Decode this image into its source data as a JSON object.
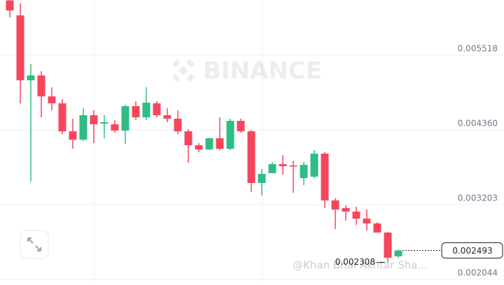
{
  "chart_data": {
    "type": "candlestick",
    "watermark": "BINANCE",
    "overlay_text": "@Khan Bhai Akhtar Sha...",
    "open": [
      0.006367,
      0.006135,
      0.005129,
      0.005204,
      0.00488,
      0.004772,
      0.004339,
      0.004209,
      0.004588,
      0.004458,
      0.004447,
      0.00435,
      0.004728,
      0.004555,
      0.004772,
      0.004588,
      0.004534,
      0.004339,
      0.004122,
      0.004058,
      0.004231,
      0.004068,
      0.004501,
      0.004339,
      0.003538,
      0.00369,
      0.00383,
      0.003809,
      0.003614,
      0.003636,
      0.003993,
      0.003268,
      0.003149,
      0.003095,
      0.002986,
      0.002911,
      0.00277,
      0.002402
    ],
    "high": [
      0.006387,
      0.006319,
      0.005378,
      0.005269,
      0.005021,
      0.004837,
      0.004534,
      0.004696,
      0.004663,
      0.004588,
      0.004512,
      0.00475,
      0.004804,
      0.005021,
      0.004804,
      0.004696,
      0.004663,
      0.004371,
      0.004155,
      0.004242,
      0.004555,
      0.004534,
      0.004534,
      0.00436,
      0.003755,
      0.003863,
      0.003971,
      0.003884,
      0.003863,
      0.004047,
      0.004014,
      0.0033,
      0.003192,
      0.00317,
      0.003127,
      0.002932,
      0.002781,
      0.00251
    ],
    "low": [
      0.006103,
      0.004772,
      0.00356,
      0.004555,
      0.004663,
      0.004296,
      0.004068,
      0.004187,
      0.004155,
      0.004231,
      0.004317,
      0.004144,
      0.004512,
      0.004512,
      0.004555,
      0.00448,
      0.004296,
      0.003852,
      0.004014,
      0.004047,
      0.004047,
      0.004047,
      0.004317,
      0.003398,
      0.003343,
      0.00369,
      0.003668,
      0.003387,
      0.003506,
      0.003614,
      0.003149,
      0.002824,
      0.002954,
      0.002889,
      0.002802,
      0.00277,
      0.002308,
      0.00238
    ],
    "close": [
      0.006211,
      0.005129,
      0.005204,
      0.00488,
      0.004772,
      0.004339,
      0.004209,
      0.004588,
      0.004447,
      0.00448,
      0.00435,
      0.004728,
      0.004555,
      0.004782,
      0.004588,
      0.004534,
      0.004339,
      0.004122,
      0.004058,
      0.004231,
      0.004068,
      0.004501,
      0.004339,
      0.003538,
      0.003679,
      0.00383,
      0.003798,
      0.003798,
      0.003819,
      0.003993,
      0.003268,
      0.003127,
      0.003095,
      0.002986,
      0.002911,
      0.00277,
      0.00238,
      0.002493
    ],
    "up_color": "#2ebd85",
    "down_color": "#f6465d",
    "min_label": 0.002308,
    "last_price": 0.002493,
    "ylim": [
      0.002001,
      0.006373
    ],
    "yticks": [
      0.005518,
      {
        "value": 0.00436,
        "label": "0.004360"
      },
      0.003203,
      0.002044
    ],
    "grid": true
  }
}
